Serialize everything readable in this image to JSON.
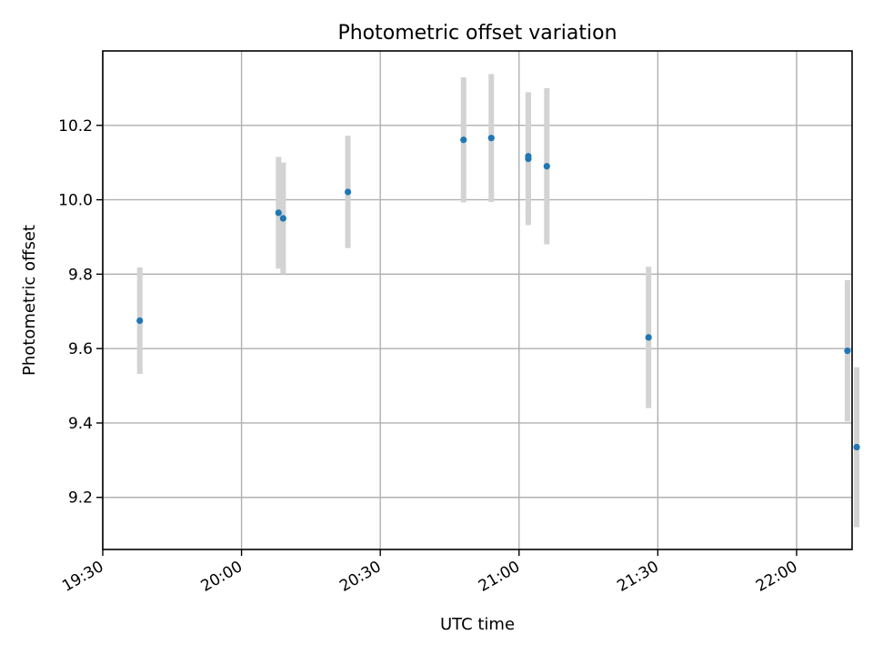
{
  "chart_data": {
    "type": "scatter",
    "title": "Photometric offset variation",
    "xlabel": "UTC time",
    "ylabel": "Photometric offset",
    "x_axis": {
      "type": "time",
      "range": [
        "19:30",
        "22:12"
      ],
      "ticks": [
        "19:30",
        "20:00",
        "20:30",
        "21:00",
        "21:30",
        "22:00"
      ]
    },
    "y_axis": {
      "range": [
        9.06,
        10.4
      ],
      "ticks": [
        "9.2",
        "9.4",
        "9.6",
        "9.8",
        "10.0",
        "10.2"
      ]
    },
    "grid": true,
    "series": [
      {
        "marker_color": "#1f77b4",
        "errorbar_color": "#d3d3d3",
        "points": [
          {
            "x": "19:38",
            "y": 9.675,
            "yerr": 0.143
          },
          {
            "x": "20:08",
            "y": 9.965,
            "yerr": 0.15
          },
          {
            "x": "20:09",
            "y": 9.95,
            "yerr": 0.15
          },
          {
            "x": "20:23",
            "y": 10.021,
            "yerr": 0.151
          },
          {
            "x": "20:48",
            "y": 10.161,
            "yerr": 0.168
          },
          {
            "x": "20:54",
            "y": 10.166,
            "yerr": 0.172
          },
          {
            "x": "21:02",
            "y": 10.11,
            "yerr": 0.178
          },
          {
            "x": "21:02",
            "y": 10.117,
            "yerr": 0.172
          },
          {
            "x": "21:06",
            "y": 10.09,
            "yerr": 0.21
          },
          {
            "x": "21:28",
            "y": 9.63,
            "yerr": 0.19
          },
          {
            "x": "22:11",
            "y": 9.594,
            "yerr": 0.19
          },
          {
            "x": "22:13",
            "y": 9.335,
            "yerr": 0.215
          }
        ]
      }
    ]
  }
}
